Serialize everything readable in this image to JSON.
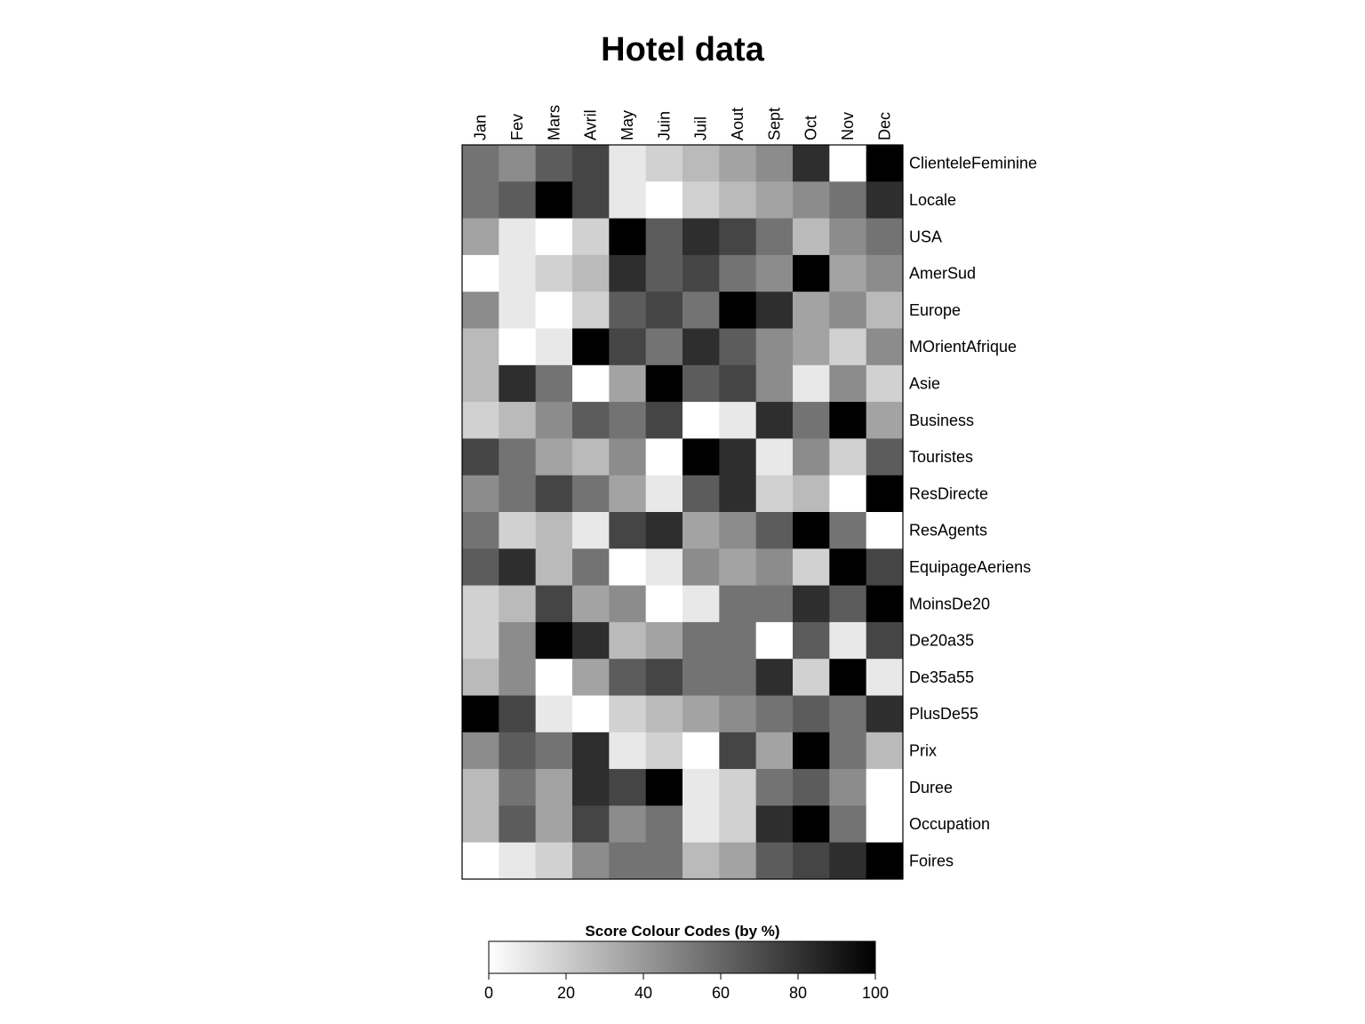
{
  "chart_data": {
    "type": "heatmap",
    "title": "Hotel data",
    "columns": [
      "Jan",
      "Fev",
      "Mars",
      "Avril",
      "May",
      "Juin",
      "Juil",
      "Aout",
      "Sept",
      "Oct",
      "Nov",
      "Dec"
    ],
    "rows": [
      "ClienteleFeminine",
      "Locale",
      "USA",
      "AmerSud",
      "Europe",
      "MOrientAfrique",
      "Asie",
      "Business",
      "Touristes",
      "ResDirecte",
      "ResAgents",
      "EquipageAeriens",
      "MoinsDe20",
      "De20a35",
      "De35a55",
      "PlusDe55",
      "Prix",
      "Duree",
      "Occupation",
      "Foires"
    ],
    "values": [
      [
        55,
        45,
        64,
        73,
        9,
        18,
        27,
        36,
        45,
        82,
        0,
        100
      ],
      [
        55,
        64,
        100,
        73,
        9,
        0,
        18,
        27,
        36,
        45,
        55,
        82
      ],
      [
        36,
        9,
        0,
        18,
        100,
        64,
        82,
        73,
        55,
        27,
        45,
        55
      ],
      [
        0,
        9,
        18,
        27,
        82,
        64,
        73,
        55,
        45,
        100,
        36,
        45
      ],
      [
        45,
        9,
        0,
        18,
        64,
        73,
        55,
        100,
        82,
        36,
        45,
        27
      ],
      [
        27,
        0,
        9,
        100,
        73,
        55,
        82,
        64,
        45,
        36,
        18,
        45
      ],
      [
        27,
        82,
        55,
        0,
        36,
        100,
        64,
        73,
        45,
        9,
        45,
        18
      ],
      [
        18,
        27,
        45,
        64,
        55,
        73,
        0,
        9,
        82,
        55,
        100,
        36
      ],
      [
        73,
        55,
        36,
        27,
        45,
        0,
        100,
        82,
        9,
        45,
        18,
        64
      ],
      [
        45,
        55,
        73,
        55,
        36,
        9,
        64,
        82,
        18,
        27,
        0,
        100
      ],
      [
        55,
        18,
        27,
        9,
        73,
        82,
        36,
        45,
        64,
        100,
        55,
        0
      ],
      [
        64,
        82,
        27,
        55,
        0,
        9,
        45,
        36,
        45,
        18,
        100,
        73
      ],
      [
        18,
        27,
        73,
        36,
        45,
        0,
        9,
        55,
        55,
        82,
        64,
        100
      ],
      [
        18,
        45,
        100,
        82,
        27,
        36,
        55,
        55,
        0,
        64,
        9,
        73
      ],
      [
        27,
        45,
        0,
        36,
        64,
        73,
        55,
        55,
        82,
        18,
        100,
        9
      ],
      [
        100,
        73,
        9,
        0,
        18,
        27,
        36,
        45,
        55,
        64,
        55,
        82
      ],
      [
        45,
        64,
        55,
        82,
        9,
        18,
        0,
        73,
        36,
        100,
        55,
        27
      ],
      [
        27,
        55,
        36,
        82,
        73,
        100,
        9,
        18,
        55,
        64,
        45,
        0
      ],
      [
        27,
        64,
        36,
        73,
        45,
        55,
        9,
        18,
        82,
        100,
        55,
        0
      ],
      [
        0,
        9,
        18,
        45,
        55,
        55,
        27,
        36,
        64,
        73,
        82,
        100
      ]
    ],
    "scale": {
      "min": 0,
      "max": 100,
      "low_color": "#ffffff",
      "high_color": "#000000"
    },
    "legend": {
      "title": "Score Colour Codes (by %)",
      "ticks": [
        "0",
        "20",
        "40",
        "60",
        "80",
        "100"
      ],
      "placement": "bottom-center"
    }
  }
}
